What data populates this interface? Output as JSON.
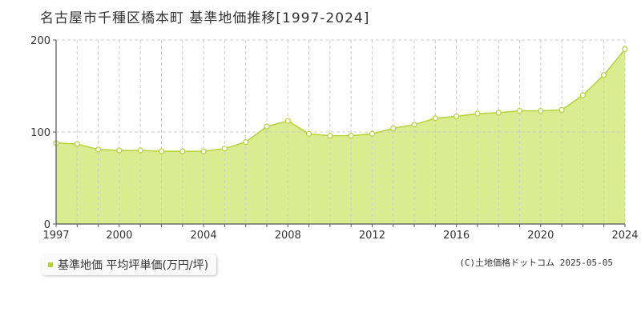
{
  "title": "名古屋市千種区橋本町 基準地価推移[1997-2024]",
  "legend": {
    "label": "基準地価 平均坪単価(万円/坪)"
  },
  "copyright": "(C)土地価格ドットコム 2025-05-05",
  "colors": {
    "fill": "#dbeb8f",
    "line": "#b5d335",
    "marker": "#b5d335",
    "grid": "#cccccc"
  },
  "chart_data": {
    "type": "area",
    "title": "名古屋市千種区橋本町 基準地価推移[1997-2024]",
    "xlabel": "",
    "ylabel": "",
    "xlim": [
      1997,
      2024
    ],
    "ylim": [
      0,
      200
    ],
    "x_ticks": [
      1997,
      2000,
      2004,
      2008,
      2012,
      2016,
      2020,
      2024
    ],
    "y_ticks": [
      0,
      100,
      200
    ],
    "grid": true,
    "legend_position": "bottom-left",
    "series": [
      {
        "name": "基準地価 平均坪単価(万円/坪)",
        "x": [
          1997,
          1998,
          1999,
          2000,
          2001,
          2002,
          2003,
          2004,
          2005,
          2006,
          2007,
          2008,
          2009,
          2010,
          2011,
          2012,
          2013,
          2014,
          2015,
          2016,
          2017,
          2018,
          2019,
          2020,
          2021,
          2022,
          2023,
          2024
        ],
        "values": [
          88,
          87,
          81,
          80,
          80,
          79,
          79,
          79,
          82,
          89,
          106,
          112,
          98,
          96,
          96,
          98,
          104,
          108,
          115,
          117,
          120,
          121,
          123,
          123,
          124,
          140,
          162,
          190
        ]
      }
    ]
  }
}
